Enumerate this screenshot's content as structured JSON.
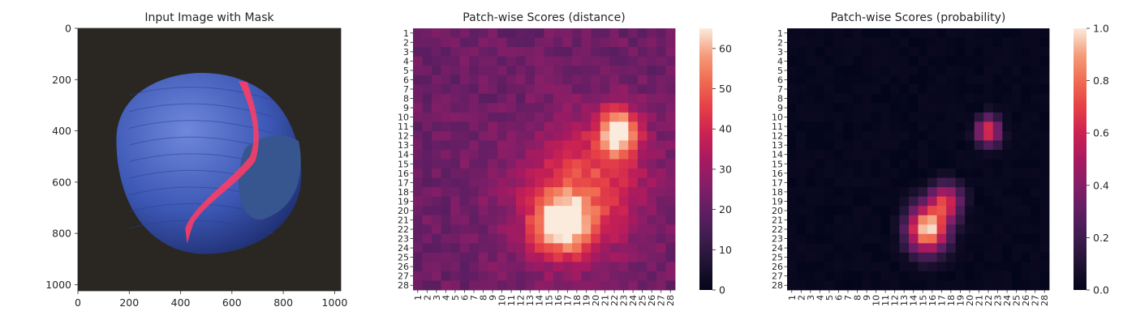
{
  "panels": [
    {
      "title": "Input Image with Mask",
      "x_ticks": [
        "0",
        "200",
        "400",
        "600",
        "800",
        "1000"
      ],
      "y_ticks": [
        "0",
        "200",
        "400",
        "600",
        "800",
        "1000"
      ]
    },
    {
      "title": "Patch-wise Scores (distance)",
      "colorbar_ticks": [
        "0",
        "10",
        "20",
        "30",
        "40",
        "50",
        "60"
      ]
    },
    {
      "title": "Patch-wise Scores (probability)",
      "colorbar_ticks": [
        "0.0",
        "0.2",
        "0.4",
        "0.6",
        "0.8",
        "1.0"
      ]
    }
  ],
  "patch_labels": [
    "1",
    "2",
    "3",
    "4",
    "5",
    "6",
    "7",
    "8",
    "9",
    "10",
    "11",
    "12",
    "13",
    "14",
    "15",
    "16",
    "17",
    "18",
    "19",
    "20",
    "21",
    "22",
    "23",
    "24",
    "25",
    "26",
    "27",
    "28"
  ],
  "colors": {
    "background": "#ffffff",
    "image_background": "#2a2622",
    "nut_body": "#3c57b4",
    "nut_highlight": "#6f88dc",
    "mask_overlay": "#ff3c64",
    "colormap": "rocket"
  },
  "chart_data": [
    {
      "type": "image",
      "title": "Input Image with Mask",
      "xlim": [
        0,
        1024
      ],
      "ylim": [
        1024,
        0
      ],
      "description_visible": "blue nut on dark background with red defect mask overlay"
    },
    {
      "type": "heatmap",
      "title": "Patch-wise Scores (distance)",
      "rows": 28,
      "cols": 28,
      "vmin": 0,
      "vmax": 65,
      "base": 22,
      "blobs": [
        {
          "row": 10.5,
          "col": 21.5,
          "amp": 40,
          "sr": 1.8,
          "sc": 1.5
        },
        {
          "row": 20.5,
          "col": 15.5,
          "amp": 42,
          "sr": 2.2,
          "sc": 2.2
        },
        {
          "row": 18.5,
          "col": 16.5,
          "amp": 14,
          "sr": 5.0,
          "sc": 5.0
        },
        {
          "row": 14.5,
          "col": 19.0,
          "amp": 14,
          "sr": 4.0,
          "sc": 4.0
        }
      ]
    },
    {
      "type": "heatmap",
      "title": "Patch-wise Scores (probability)",
      "rows": 28,
      "cols": 28,
      "vmin": 0,
      "vmax": 1,
      "base": 0,
      "blobs": [
        {
          "row": 10.5,
          "col": 21.0,
          "amp": 0.7,
          "sr": 1.1,
          "sc": 0.9
        },
        {
          "row": 21.0,
          "col": 14.5,
          "amp": 1.0,
          "sr": 1.8,
          "sc": 1.5
        },
        {
          "row": 18.0,
          "col": 16.5,
          "amp": 0.6,
          "sr": 1.4,
          "sc": 1.2
        }
      ]
    }
  ]
}
